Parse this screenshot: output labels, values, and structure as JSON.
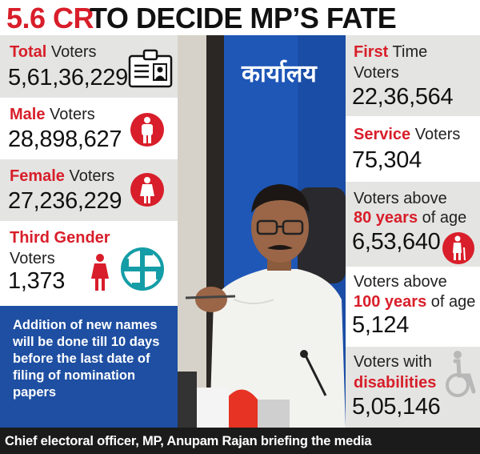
{
  "headline": {
    "number": "5.6 CR",
    "rest": "TO DECIDE MP’S FATE"
  },
  "left": {
    "total": {
      "label_red": "Total",
      "label_rest": " Voters",
      "value": "5,61,36,229"
    },
    "male": {
      "label_red": "Male",
      "label_rest": " Voters",
      "value": "28,898,627"
    },
    "female": {
      "label_red": "Female",
      "label_rest": " Voters",
      "value": "27,236,229"
    },
    "third": {
      "label_red": "Third Gender",
      "label_rest": "Voters",
      "value": "1,373"
    }
  },
  "note": "Addition of new names will be done till 10 days before the last date of filing of nomination papers",
  "right": {
    "first_time": {
      "label_red": "First",
      "label_rest": " Time",
      "label_line2": "Voters",
      "value": "22,36,564"
    },
    "service": {
      "label_red": "Service",
      "label_rest": " Voters",
      "value": "75,304"
    },
    "above80": {
      "line1": "Voters above",
      "red": "80 years",
      "rest": " of age",
      "value": "6,53,640"
    },
    "above100": {
      "line1": "Voters above",
      "red": "100 years",
      "rest": " of age",
      "value": "5,124"
    },
    "disabilities": {
      "line1": "Voters with",
      "red": "disabilities",
      "value": "5,05,146"
    }
  },
  "photo": {
    "sign_text": "कार्यालय"
  },
  "caption": "Chief electoral officer, MP, Anupam Rajan briefing the media",
  "colors": {
    "red": "#d81e2a",
    "blue": "#1e4fa2",
    "gray": "#e4e4e2"
  }
}
